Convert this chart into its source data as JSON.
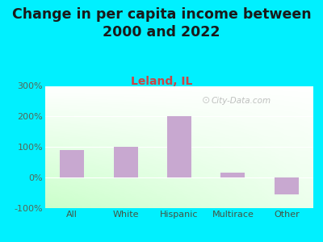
{
  "title": "Change in per capita income between\n2000 and 2022",
  "subtitle": "Leland, IL",
  "categories": [
    "All",
    "White",
    "Hispanic",
    "Multirace",
    "Other"
  ],
  "values": [
    90,
    100,
    200,
    15,
    -55
  ],
  "bar_color": "#c8a8d0",
  "title_fontsize": 12.5,
  "subtitle_fontsize": 10,
  "subtitle_color": "#cc4444",
  "title_color": "#1a1a1a",
  "background_color": "#00f0ff",
  "ylim": [
    -100,
    300
  ],
  "yticks": [
    -100,
    0,
    100,
    200,
    300
  ],
  "ytick_labels": [
    "-100%",
    "0%",
    "100%",
    "200%",
    "300%"
  ],
  "watermark": "City-Data.com",
  "tick_color": "#556655",
  "xlabel_color": "#445544"
}
